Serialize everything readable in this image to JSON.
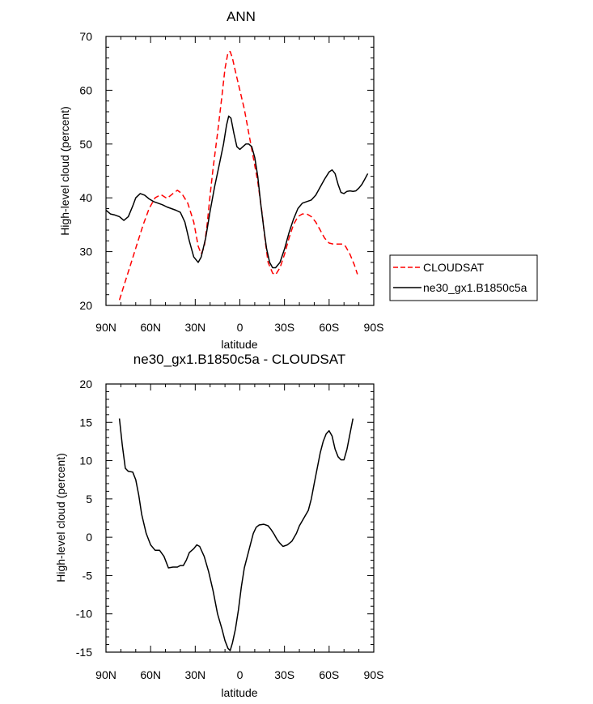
{
  "chart_data": [
    {
      "type": "line",
      "title": "ANN",
      "xlabel": "latitude",
      "ylabel": "High-level cloud (percent)",
      "xlim": [
        -90,
        90
      ],
      "ylim": [
        20,
        70
      ],
      "x_ticks": [
        {
          "value": -90,
          "label": "90N"
        },
        {
          "value": -60,
          "label": "60N"
        },
        {
          "value": -30,
          "label": "30N"
        },
        {
          "value": 0,
          "label": "0"
        },
        {
          "value": 30,
          "label": "30S"
        },
        {
          "value": 60,
          "label": "60S"
        },
        {
          "value": 90,
          "label": "90S"
        }
      ],
      "y_ticks": [
        20,
        30,
        40,
        50,
        60,
        70
      ],
      "legend": {
        "position": "right",
        "entries": [
          "CLOUDSAT",
          "ne30_gx1.B1850c5a"
        ]
      },
      "series": [
        {
          "name": "CLOUDSAT",
          "style": "dashed",
          "color": "#ff0000",
          "points": [
            [
              -81,
              21.0
            ],
            [
              -77,
              24.5
            ],
            [
              -73,
              28.0
            ],
            [
              -69,
              31.5
            ],
            [
              -65,
              35.0
            ],
            [
              -61,
              38.0
            ],
            [
              -57,
              40.0
            ],
            [
              -53,
              40.6
            ],
            [
              -49,
              39.9
            ],
            [
              -45,
              40.8
            ],
            [
              -42,
              41.4
            ],
            [
              -39,
              40.8
            ],
            [
              -35,
              39.0
            ],
            [
              -31,
              35.5
            ],
            [
              -28,
              31.0
            ],
            [
              -26,
              29.6
            ],
            [
              -24,
              30.8
            ],
            [
              -22,
              35.0
            ],
            [
              -20,
              40.5
            ],
            [
              -18,
              45.5
            ],
            [
              -15,
              52.0
            ],
            [
              -12,
              59.0
            ],
            [
              -10,
              64.0
            ],
            [
              -8,
              67.0
            ],
            [
              -6.5,
              67.2
            ],
            [
              -5,
              66.0
            ],
            [
              -3,
              63.5
            ],
            [
              0,
              60.0
            ],
            [
              3,
              56.5
            ],
            [
              6,
              52.0
            ],
            [
              9,
              47.5
            ],
            [
              12,
              43.0
            ],
            [
              15,
              37.0
            ],
            [
              17,
              32.0
            ],
            [
              19,
              28.0
            ],
            [
              22,
              26.0
            ],
            [
              24,
              25.7
            ],
            [
              27,
              27.0
            ],
            [
              30,
              29.5
            ],
            [
              33,
              32.5
            ],
            [
              36,
              35.0
            ],
            [
              39,
              36.5
            ],
            [
              42,
              37.0
            ],
            [
              45,
              37.0
            ],
            [
              48,
              36.5
            ],
            [
              51,
              35.5
            ],
            [
              54,
              34.0
            ],
            [
              57,
              32.5
            ],
            [
              60,
              31.6
            ],
            [
              63,
              31.4
            ],
            [
              66,
              31.4
            ],
            [
              69,
              31.4
            ],
            [
              71,
              31.0
            ],
            [
              74,
              29.5
            ],
            [
              77,
              27.5
            ],
            [
              79,
              25.8
            ]
          ]
        },
        {
          "name": "ne30_gx1.B1850c5a",
          "style": "solid",
          "color": "#000000",
          "points": [
            [
              -90,
              37.7
            ],
            [
              -87,
              37.0
            ],
            [
              -84,
              36.8
            ],
            [
              -81,
              36.5
            ],
            [
              -78,
              35.8
            ],
            [
              -75,
              36.5
            ],
            [
              -72,
              38.5
            ],
            [
              -70,
              40.0
            ],
            [
              -67,
              40.8
            ],
            [
              -64,
              40.5
            ],
            [
              -61,
              39.8
            ],
            [
              -58,
              39.3
            ],
            [
              -55,
              39.0
            ],
            [
              -52,
              38.7
            ],
            [
              -49,
              38.3
            ],
            [
              -46,
              38.0
            ],
            [
              -43,
              37.7
            ],
            [
              -40,
              37.3
            ],
            [
              -37,
              35.5
            ],
            [
              -34,
              32.0
            ],
            [
              -31,
              29.0
            ],
            [
              -28,
              28.0
            ],
            [
              -26,
              29.0
            ],
            [
              -23,
              32.5
            ],
            [
              -20,
              37.5
            ],
            [
              -17,
              42.0
            ],
            [
              -14,
              46.0
            ],
            [
              -11,
              50.0
            ],
            [
              -9,
              53.5
            ],
            [
              -7.5,
              55.2
            ],
            [
              -6,
              54.8
            ],
            [
              -4,
              52.0
            ],
            [
              -2,
              49.5
            ],
            [
              0,
              49.0
            ],
            [
              2,
              49.5
            ],
            [
              4,
              50.0
            ],
            [
              6,
              50.0
            ],
            [
              8,
              49.5
            ],
            [
              10,
              47.5
            ],
            [
              12,
              44.0
            ],
            [
              14,
              39.0
            ],
            [
              16,
              34.5
            ],
            [
              18,
              30.5
            ],
            [
              20,
              28.0
            ],
            [
              22,
              27.0
            ],
            [
              24,
              27.0
            ],
            [
              27,
              28.0
            ],
            [
              30,
              30.5
            ],
            [
              33,
              33.5
            ],
            [
              36,
              36.0
            ],
            [
              39,
              38.0
            ],
            [
              42,
              39.0
            ],
            [
              45,
              39.3
            ],
            [
              48,
              39.6
            ],
            [
              51,
              40.5
            ],
            [
              54,
              42.0
            ],
            [
              57,
              43.5
            ],
            [
              60,
              44.8
            ],
            [
              62,
              45.2
            ],
            [
              64,
              44.5
            ],
            [
              66,
              42.5
            ],
            [
              68,
              41.0
            ],
            [
              70,
              40.8
            ],
            [
              72,
              41.2
            ],
            [
              74,
              41.3
            ],
            [
              76,
              41.2
            ],
            [
              78,
              41.3
            ],
            [
              80,
              41.8
            ],
            [
              82,
              42.5
            ],
            [
              84,
              43.5
            ],
            [
              86,
              44.5
            ]
          ]
        }
      ]
    },
    {
      "type": "line",
      "title": "ne30_gx1.B1850c5a - CLOUDSAT",
      "xlabel": "latitude",
      "ylabel": "High-level cloud (percent)",
      "xlim": [
        -90,
        90
      ],
      "ylim": [
        -15,
        20
      ],
      "x_ticks": [
        {
          "value": -90,
          "label": "90N"
        },
        {
          "value": -60,
          "label": "60N"
        },
        {
          "value": -30,
          "label": "30N"
        },
        {
          "value": 0,
          "label": "0"
        },
        {
          "value": 30,
          "label": "30S"
        },
        {
          "value": 60,
          "label": "60S"
        },
        {
          "value": 90,
          "label": "90S"
        }
      ],
      "y_ticks": [
        20,
        15,
        10,
        5,
        0,
        -5,
        -10,
        -15
      ],
      "series": [
        {
          "name": "ne30_gx1.B1850c5a - CLOUDSAT",
          "style": "solid",
          "color": "#000000",
          "points": [
            [
              -81,
              15.5
            ],
            [
              -79,
              12.0
            ],
            [
              -77,
              9.0
            ],
            [
              -75,
              8.6
            ],
            [
              -72,
              8.5
            ],
            [
              -70,
              7.5
            ],
            [
              -68,
              5.5
            ],
            [
              -66,
              3.0
            ],
            [
              -63,
              0.5
            ],
            [
              -60,
              -1.0
            ],
            [
              -57,
              -1.7
            ],
            [
              -54,
              -1.7
            ],
            [
              -51,
              -2.5
            ],
            [
              -48,
              -4.0
            ],
            [
              -45,
              -3.9
            ],
            [
              -42,
              -3.9
            ],
            [
              -40,
              -3.7
            ],
            [
              -38,
              -3.7
            ],
            [
              -36,
              -3.0
            ],
            [
              -34,
              -2.0
            ],
            [
              -31,
              -1.5
            ],
            [
              -29,
              -1.0
            ],
            [
              -27,
              -1.2
            ],
            [
              -24,
              -2.5
            ],
            [
              -21,
              -4.5
            ],
            [
              -18,
              -7.0
            ],
            [
              -15,
              -10.0
            ],
            [
              -12,
              -12.0
            ],
            [
              -10,
              -13.5
            ],
            [
              -8,
              -14.5
            ],
            [
              -6.5,
              -14.8
            ],
            [
              -5,
              -13.8
            ],
            [
              -3,
              -12.0
            ],
            [
              -1,
              -9.5
            ],
            [
              1,
              -6.5
            ],
            [
              3,
              -4.0
            ],
            [
              5,
              -2.5
            ],
            [
              7,
              -1.0
            ],
            [
              9,
              0.5
            ],
            [
              11,
              1.3
            ],
            [
              13,
              1.6
            ],
            [
              16,
              1.7
            ],
            [
              19,
              1.5
            ],
            [
              21,
              1.0
            ],
            [
              23,
              0.4
            ],
            [
              25,
              -0.3
            ],
            [
              27,
              -0.8
            ],
            [
              29,
              -1.2
            ],
            [
              32,
              -1.0
            ],
            [
              35,
              -0.5
            ],
            [
              38,
              0.5
            ],
            [
              40,
              1.5
            ],
            [
              43,
              2.5
            ],
            [
              46,
              3.5
            ],
            [
              48,
              5.0
            ],
            [
              50,
              7.0
            ],
            [
              52,
              9.0
            ],
            [
              54,
              11.0
            ],
            [
              56,
              12.5
            ],
            [
              58,
              13.5
            ],
            [
              60,
              13.9
            ],
            [
              62,
              13.2
            ],
            [
              64,
              11.5
            ],
            [
              66,
              10.5
            ],
            [
              68,
              10.1
            ],
            [
              70,
              10.1
            ],
            [
              72,
              11.5
            ],
            [
              74,
              13.5
            ],
            [
              76,
              15.5
            ]
          ]
        }
      ]
    }
  ]
}
